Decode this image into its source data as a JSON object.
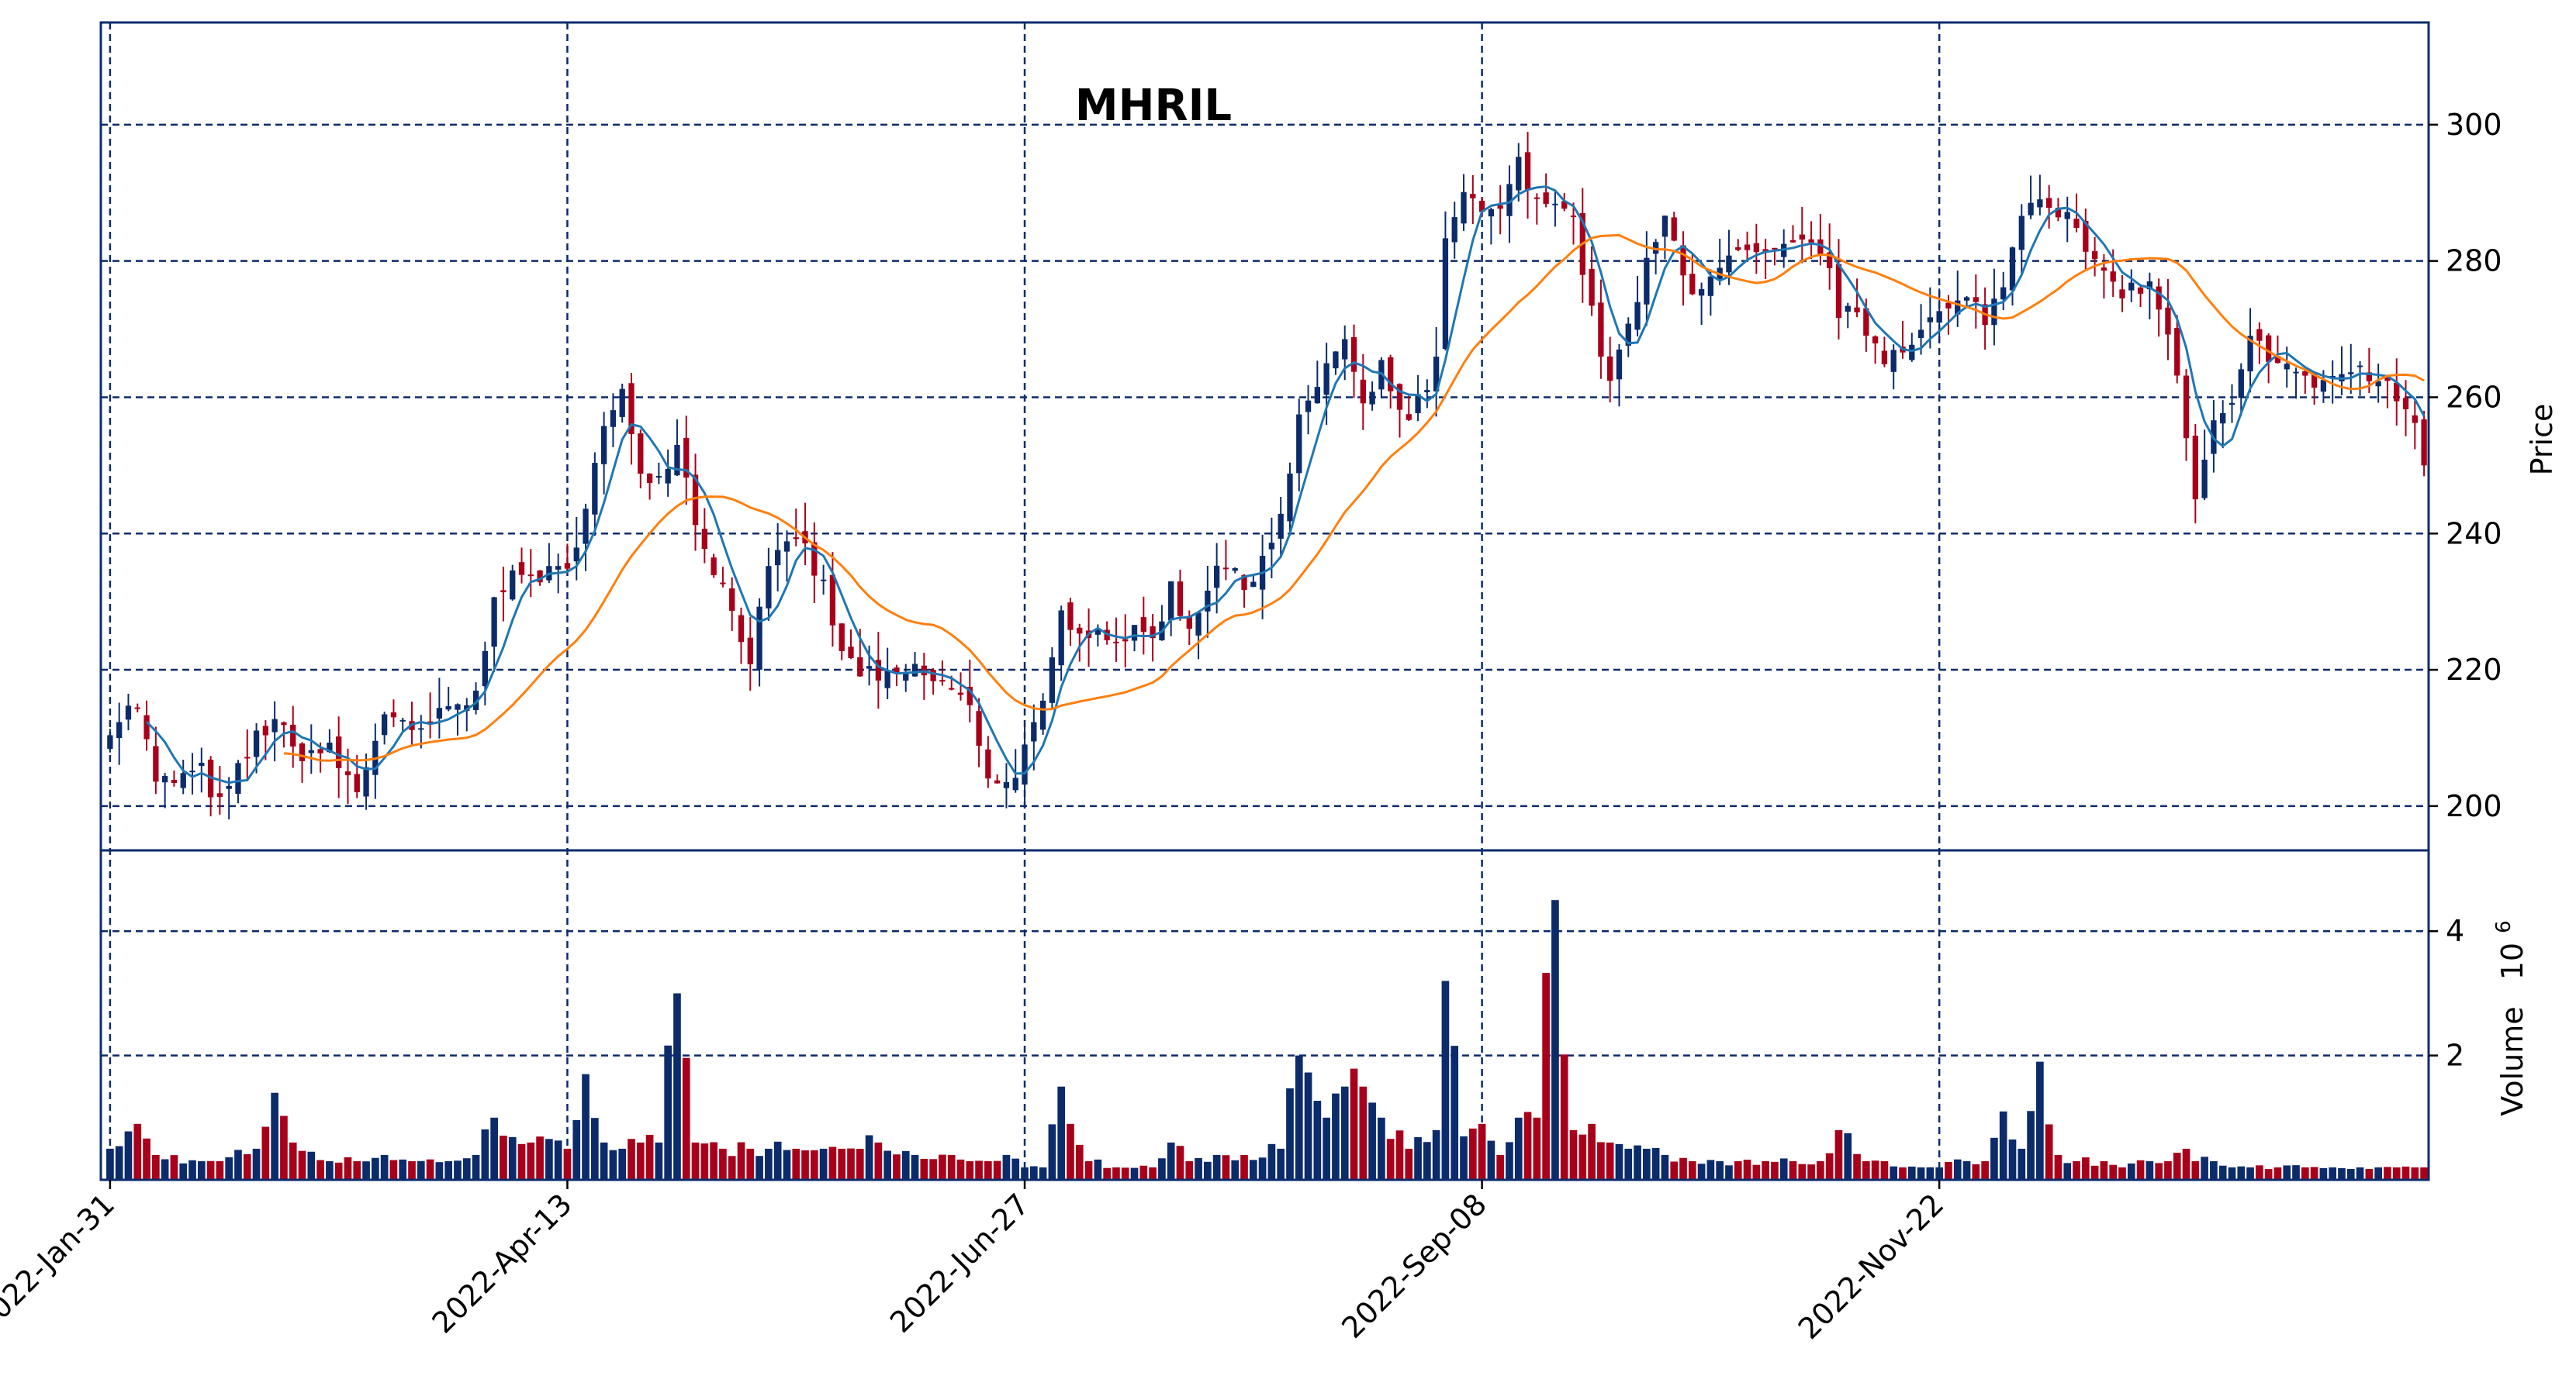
{
  "chart_data": {
    "type": "candlestick",
    "title": "MHRIL",
    "price_axis": {
      "label": "Price",
      "ticks": [
        200,
        220,
        240,
        260,
        280,
        300
      ],
      "range": [
        193.5,
        315.0
      ]
    },
    "volume_axis": {
      "label": "Volume  10^6",
      "label_main": "Volume",
      "label_exp": "10",
      "label_sup": "6",
      "ticks": [
        2,
        4
      ],
      "tick_labels": [
        "2",
        "4"
      ],
      "range": [
        0.0,
        5.3
      ]
    },
    "x_axis": {
      "ticks": [
        {
          "index": 0,
          "label": "2022-Jan-31"
        },
        {
          "index": 50,
          "label": "2022-Apr-13"
        },
        {
          "index": 100,
          "label": "2022-Jun-27"
        },
        {
          "index": 150,
          "label": "2022-Sep-08"
        },
        {
          "index": 200,
          "label": "2022-Nov-22"
        }
      ]
    },
    "grid": true,
    "colors": {
      "up": "#0b2b6b",
      "down": "#a8001a",
      "ma_short": "#1f77b4",
      "ma_long": "#ff7f0e",
      "grid": "#0b2b6b",
      "frame": "#0b2b6b"
    },
    "anchors": [
      [
        0,
        212,
        0.5
      ],
      [
        3,
        215,
        0.9
      ],
      [
        5,
        203,
        0.4
      ],
      [
        10,
        205,
        0.3
      ],
      [
        12,
        200,
        0.3
      ],
      [
        16,
        210,
        0.5
      ],
      [
        18,
        213,
        1.4
      ],
      [
        20,
        208,
        0.6
      ],
      [
        24,
        208,
        0.3
      ],
      [
        27,
        202,
        0.3
      ],
      [
        30,
        214,
        0.4
      ],
      [
        33,
        210,
        0.3
      ],
      [
        37,
        214,
        0.3
      ],
      [
        40,
        216,
        0.4
      ],
      [
        42,
        232,
        1.0
      ],
      [
        46,
        234,
        0.6
      ],
      [
        50,
        234,
        0.5
      ],
      [
        52,
        245,
        1.7
      ],
      [
        54,
        255,
        0.6
      ],
      [
        56,
        260,
        0.5
      ],
      [
        58,
        250,
        0.6
      ],
      [
        60,
        248,
        0.6
      ],
      [
        62,
        254,
        3.0
      ],
      [
        64,
        242,
        0.6
      ],
      [
        67,
        232,
        0.5
      ],
      [
        70,
        222,
        0.5
      ],
      [
        72,
        234,
        0.5
      ],
      [
        75,
        240,
        0.5
      ],
      [
        78,
        232,
        0.5
      ],
      [
        80,
        222,
        0.5
      ],
      [
        84,
        218,
        0.6
      ],
      [
        88,
        220,
        0.4
      ],
      [
        92,
        217,
        0.4
      ],
      [
        94,
        214,
        0.3
      ],
      [
        96,
        205,
        0.3
      ],
      [
        98,
        203,
        0.4
      ],
      [
        100,
        208,
        0.2
      ],
      [
        102,
        214,
        0.2
      ],
      [
        104,
        228,
        1.5
      ],
      [
        107,
        226,
        0.3
      ],
      [
        110,
        225,
        0.2
      ],
      [
        114,
        225,
        0.2
      ],
      [
        116,
        232,
        0.6
      ],
      [
        118,
        226,
        0.3
      ],
      [
        121,
        236,
        0.4
      ],
      [
        124,
        232,
        0.4
      ],
      [
        128,
        242,
        0.5
      ],
      [
        130,
        256,
        2.0
      ],
      [
        133,
        265,
        1.0
      ],
      [
        135,
        268,
        1.5
      ],
      [
        137,
        258,
        1.5
      ],
      [
        139,
        264,
        1.0
      ],
      [
        142,
        256,
        0.5
      ],
      [
        145,
        265,
        0.8
      ],
      [
        146,
        282,
        3.2
      ],
      [
        148,
        290,
        0.7
      ],
      [
        150,
        286,
        0.9
      ],
      [
        152,
        288,
        0.4
      ],
      [
        154,
        294,
        1.0
      ],
      [
        156,
        288,
        1.0
      ],
      [
        158,
        290,
        4.5
      ],
      [
        160,
        286,
        0.8
      ],
      [
        162,
        272,
        0.9
      ],
      [
        164,
        262,
        0.6
      ],
      [
        166,
        270,
        0.5
      ],
      [
        168,
        279,
        0.5
      ],
      [
        170,
        286,
        0.4
      ],
      [
        173,
        276,
        0.3
      ],
      [
        176,
        278,
        0.3
      ],
      [
        178,
        281,
        0.3
      ],
      [
        181,
        280,
        0.3
      ],
      [
        184,
        282,
        0.3
      ],
      [
        187,
        282,
        0.3
      ],
      [
        189,
        273,
        0.8
      ],
      [
        192,
        270,
        0.3
      ],
      [
        194,
        266,
        0.3
      ],
      [
        196,
        268,
        0.2
      ],
      [
        198,
        270,
        0.2
      ],
      [
        200,
        272,
        0.2
      ],
      [
        203,
        274,
        0.3
      ],
      [
        205,
        272,
        0.3
      ],
      [
        207,
        276,
        1.1
      ],
      [
        209,
        288,
        0.5
      ],
      [
        211,
        290,
        1.9
      ],
      [
        213,
        288,
        0.4
      ],
      [
        215,
        284,
        0.3
      ],
      [
        218,
        277,
        0.3
      ],
      [
        220,
        276,
        0.2
      ],
      [
        223,
        276,
        0.3
      ],
      [
        225,
        270,
        0.3
      ],
      [
        227,
        254,
        0.5
      ],
      [
        228,
        244,
        0.3
      ],
      [
        230,
        256,
        0.3
      ],
      [
        232,
        258,
        0.2
      ],
      [
        234,
        268,
        0.2
      ],
      [
        237,
        266,
        0.2
      ],
      [
        240,
        262,
        0.2
      ],
      [
        243,
        263,
        0.2
      ],
      [
        246,
        264,
        0.2
      ],
      [
        248,
        262,
        0.2
      ],
      [
        250,
        260,
        0.2
      ],
      [
        252,
        256,
        0.2
      ],
      [
        253,
        250,
        0.2
      ]
    ]
  }
}
